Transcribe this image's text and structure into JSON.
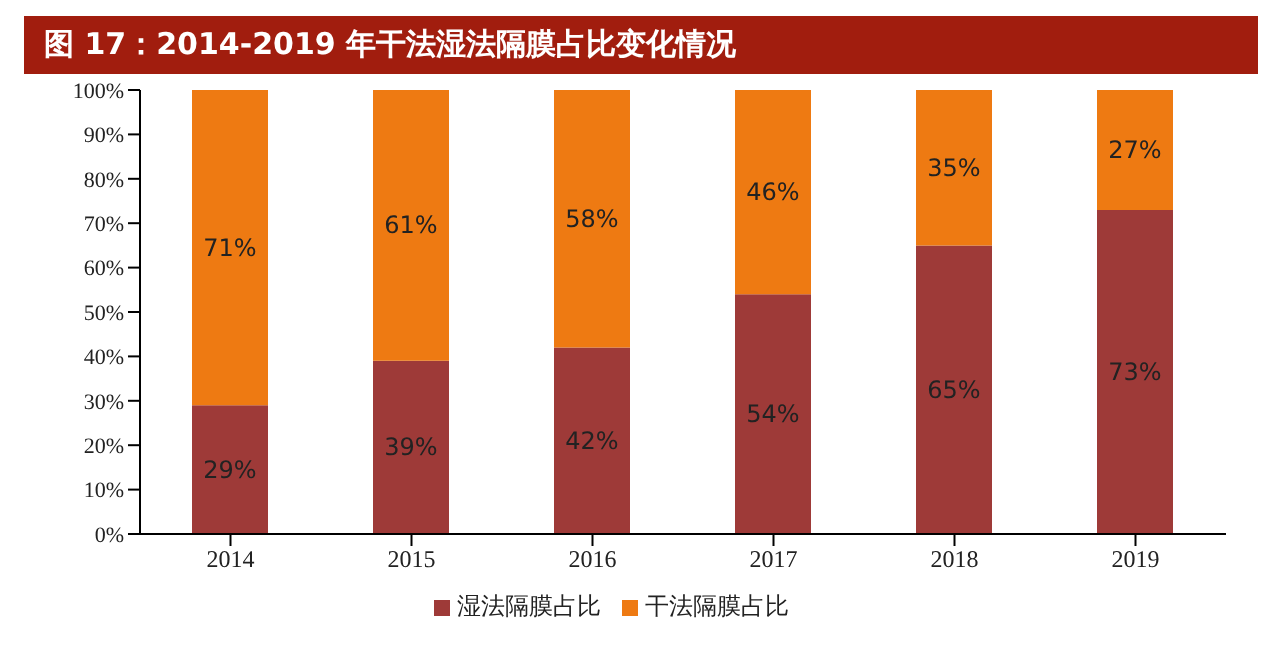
{
  "chart_data": {
    "type": "bar",
    "title": "图 17：2014-2019 年干法湿法隔膜占比变化情况",
    "categories": [
      "2014",
      "2015",
      "2016",
      "2017",
      "2018",
      "2019"
    ],
    "stacked": true,
    "series": [
      {
        "name": "湿法隔膜占比",
        "color": "#9e3a38",
        "values": [
          29,
          39,
          42,
          54,
          65,
          73
        ],
        "value_labels": [
          "29%",
          "39%",
          "42%",
          "54%",
          "65%",
          "73%"
        ]
      },
      {
        "name": "干法隔膜占比",
        "color": "#ee7a12",
        "values": [
          71,
          61,
          58,
          46,
          35,
          27
        ],
        "value_labels": [
          "71%",
          "61%",
          "58%",
          "46%",
          "35%",
          "27%"
        ]
      }
    ],
    "ylim": [
      0,
      100
    ],
    "yticks": [
      {
        "value": 0,
        "label": "0%"
      },
      {
        "value": 10,
        "label": "10%"
      },
      {
        "value": 20,
        "label": "20%"
      },
      {
        "value": 30,
        "label": "30%"
      },
      {
        "value": 40,
        "label": "40%"
      },
      {
        "value": 50,
        "label": "50%"
      },
      {
        "value": 60,
        "label": "60%"
      },
      {
        "value": 70,
        "label": "70%"
      },
      {
        "value": 80,
        "label": "80%"
      },
      {
        "value": 90,
        "label": "90%"
      },
      {
        "value": 100,
        "label": "100%"
      }
    ],
    "grid": false,
    "legend": "bottom"
  }
}
